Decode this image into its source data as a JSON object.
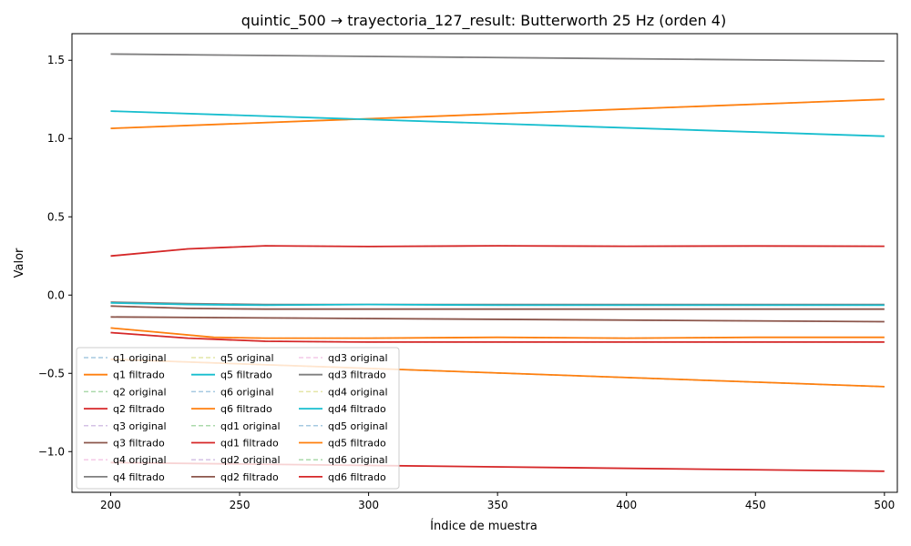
{
  "chart_data": {
    "type": "line",
    "title": "quintic_500 → trayectoria_127_result: Butterworth 25 Hz (orden 4)",
    "xlabel": "Índice de muestra",
    "ylabel": "Valor",
    "xlim": [
      185,
      505
    ],
    "ylim": [
      -1.26,
      1.67
    ],
    "xticks": [
      200,
      250,
      300,
      350,
      400,
      450,
      500
    ],
    "yticks": [
      -1.0,
      -0.5,
      0.0,
      0.5,
      1.0,
      1.5
    ],
    "ytick_labels": [
      "−1.0",
      "−0.5",
      "0.0",
      "0.5",
      "1.0",
      "1.5"
    ],
    "grid": false,
    "legend": {
      "placement": "lower-left",
      "columns": 3
    },
    "series": [
      {
        "name": "q1 original",
        "color": "#1f77b4",
        "style": "dashed",
        "x": [
          200,
          500
        ],
        "y": [
          1.065,
          1.25
        ]
      },
      {
        "name": "q1 filtrado",
        "color": "#ff7f0e",
        "style": "solid",
        "x": [
          200,
          500
        ],
        "y": [
          1.065,
          1.25
        ]
      },
      {
        "name": "q2 original",
        "color": "#2ca02c",
        "style": "dashed",
        "x": [
          200,
          500
        ],
        "y": [
          -0.41,
          -0.585
        ]
      },
      {
        "name": "q2 filtrado",
        "color": "#d62728",
        "style": "solid",
        "x": [
          200,
          500
        ],
        "y": [
          -1.07,
          -1.125
        ]
      },
      {
        "name": "q3 original",
        "color": "#9467bd",
        "style": "dashed",
        "x": [
          200,
          500
        ],
        "y": [
          -0.14,
          -0.17
        ]
      },
      {
        "name": "q3 filtrado",
        "color": "#8c564b",
        "style": "solid",
        "x": [
          200,
          500
        ],
        "y": [
          -0.14,
          -0.17
        ]
      },
      {
        "name": "q4 original",
        "color": "#e377c2",
        "style": "dashed",
        "x": [
          200,
          500
        ],
        "y": [
          1.54,
          1.495
        ]
      },
      {
        "name": "q4 filtrado",
        "color": "#7f7f7f",
        "style": "solid",
        "x": [
          200,
          500
        ],
        "y": [
          1.54,
          1.495
        ]
      },
      {
        "name": "q5 original",
        "color": "#bcbd22",
        "style": "dashed",
        "x": [
          200,
          500
        ],
        "y": [
          1.175,
          1.015
        ]
      },
      {
        "name": "q5 filtrado",
        "color": "#17becf",
        "style": "solid",
        "x": [
          200,
          500
        ],
        "y": [
          1.175,
          1.015
        ]
      },
      {
        "name": "q6 original",
        "color": "#1f77b4",
        "style": "dashed",
        "x": [
          200,
          500
        ],
        "y": [
          -0.41,
          -0.585
        ]
      },
      {
        "name": "q6 filtrado",
        "color": "#ff7f0e",
        "style": "solid",
        "x": [
          200,
          500
        ],
        "y": [
          -0.41,
          -0.585
        ]
      },
      {
        "name": "qd1 original",
        "color": "#2ca02c",
        "style": "dashed",
        "x": [
          200,
          230,
          260,
          300,
          350,
          400,
          450,
          500
        ],
        "y": [
          0.25,
          0.295,
          0.315,
          0.31,
          0.315,
          0.312,
          0.314,
          0.312
        ]
      },
      {
        "name": "qd1 filtrado",
        "color": "#d62728",
        "style": "solid",
        "x": [
          200,
          230,
          260,
          300,
          350,
          400,
          450,
          500
        ],
        "y": [
          0.25,
          0.295,
          0.315,
          0.31,
          0.315,
          0.312,
          0.314,
          0.312
        ]
      },
      {
        "name": "qd2 original",
        "color": "#9467bd",
        "style": "dashed",
        "x": [
          200,
          230,
          260,
          300,
          350,
          400,
          450,
          500
        ],
        "y": [
          -0.07,
          -0.085,
          -0.09,
          -0.09,
          -0.09,
          -0.09,
          -0.09,
          -0.09
        ]
      },
      {
        "name": "qd2 filtrado",
        "color": "#8c564b",
        "style": "solid",
        "x": [
          200,
          230,
          260,
          300,
          350,
          400,
          450,
          500
        ],
        "y": [
          -0.07,
          -0.085,
          -0.09,
          -0.09,
          -0.09,
          -0.09,
          -0.09,
          -0.09
        ]
      },
      {
        "name": "qd3 original",
        "color": "#e377c2",
        "style": "dashed",
        "x": [
          200,
          230,
          260,
          300,
          350,
          400,
          450,
          500
        ],
        "y": [
          -0.045,
          -0.055,
          -0.06,
          -0.06,
          -0.06,
          -0.06,
          -0.06,
          -0.06
        ]
      },
      {
        "name": "qd3 filtrado",
        "color": "#7f7f7f",
        "style": "solid",
        "x": [
          200,
          230,
          260,
          300,
          350,
          400,
          450,
          500
        ],
        "y": [
          -0.045,
          -0.055,
          -0.06,
          -0.06,
          -0.06,
          -0.06,
          -0.06,
          -0.06
        ]
      },
      {
        "name": "qd4 original",
        "color": "#bcbd22",
        "style": "dashed",
        "x": [
          200,
          230,
          260,
          300,
          350,
          400,
          450,
          500
        ],
        "y": [
          -0.05,
          -0.06,
          -0.065,
          -0.06,
          -0.065,
          -0.065,
          -0.065,
          -0.065
        ]
      },
      {
        "name": "qd4 filtrado",
        "color": "#17becf",
        "style": "solid",
        "x": [
          200,
          230,
          260,
          300,
          350,
          400,
          450,
          500
        ],
        "y": [
          -0.05,
          -0.06,
          -0.065,
          -0.06,
          -0.065,
          -0.065,
          -0.065,
          -0.065
        ]
      },
      {
        "name": "qd5 original",
        "color": "#1f77b4",
        "style": "dashed",
        "x": [
          200,
          220,
          240,
          260,
          300,
          350,
          400,
          450,
          500
        ],
        "y": [
          -0.21,
          -0.24,
          -0.27,
          -0.275,
          -0.275,
          -0.27,
          -0.275,
          -0.27,
          -0.27
        ]
      },
      {
        "name": "qd5 filtrado",
        "color": "#ff7f0e",
        "style": "solid",
        "x": [
          200,
          220,
          240,
          260,
          300,
          350,
          400,
          450,
          500
        ],
        "y": [
          -0.21,
          -0.24,
          -0.27,
          -0.275,
          -0.275,
          -0.27,
          -0.275,
          -0.27,
          -0.27
        ]
      },
      {
        "name": "qd6 original",
        "color": "#2ca02c",
        "style": "dashed",
        "x": [
          200,
          230,
          260,
          300,
          350,
          400,
          450,
          500
        ],
        "y": [
          -0.24,
          -0.275,
          -0.295,
          -0.3,
          -0.3,
          -0.3,
          -0.3,
          -0.3
        ]
      },
      {
        "name": "qd6 filtrado",
        "color": "#d62728",
        "style": "solid",
        "x": [
          200,
          230,
          260,
          300,
          350,
          400,
          450,
          500
        ],
        "y": [
          -0.24,
          -0.275,
          -0.295,
          -0.3,
          -0.3,
          -0.3,
          -0.3,
          -0.3
        ]
      }
    ]
  }
}
